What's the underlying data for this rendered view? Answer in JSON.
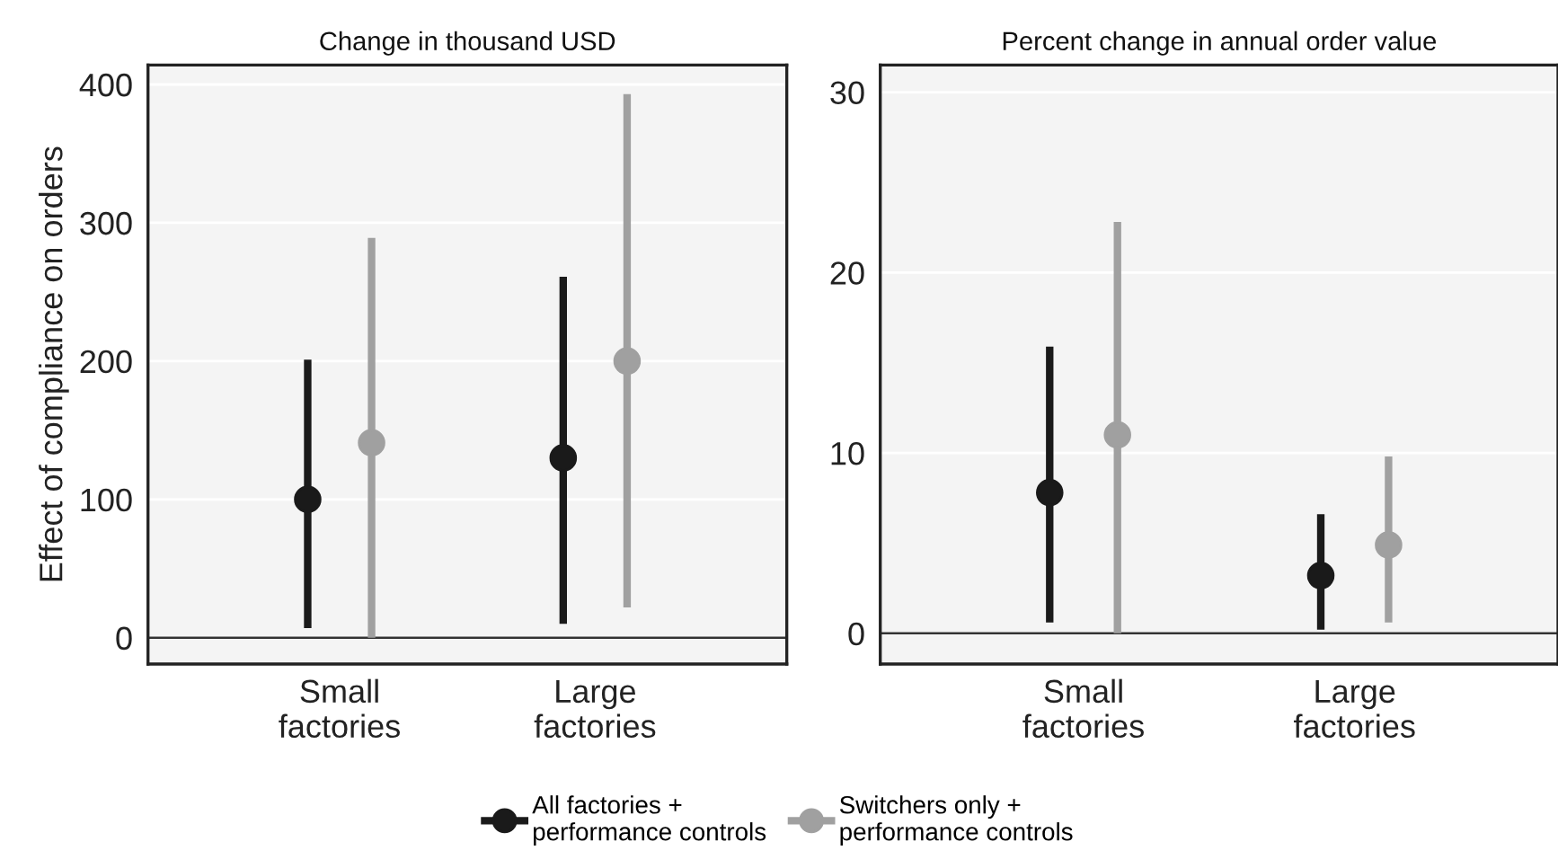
{
  "chart_data": [
    {
      "type": "scatter",
      "title": "Change in thousand USD",
      "ylabel": "Effect of compliance on orders",
      "categories": [
        "Small\nfactories",
        "Large\nfactories"
      ],
      "series": [
        {
          "name": "All factories +\nperformance controls",
          "color": "#1a1a1a",
          "values": [
            100,
            130
          ],
          "errors": [
            [
              7,
              201
            ],
            [
              10,
              261
            ]
          ]
        },
        {
          "name": "Switchers only +\nperformance controls",
          "color": "#a0a0a0",
          "values": [
            141,
            200
          ],
          "errors": [
            [
              0,
              289
            ],
            [
              22,
              393
            ]
          ]
        }
      ],
      "ylim": [
        -19,
        414
      ],
      "yticks": [
        0,
        100,
        200,
        300,
        400
      ],
      "grid": "y",
      "marker": "circle",
      "legend": "bottom",
      "ref_lines": [
        {
          "axis": "y",
          "value": 0,
          "color": "#333333"
        }
      ]
    },
    {
      "type": "scatter",
      "title": "Percent change in annual order value",
      "categories": [
        "Small\nfactories",
        "Large\nfactories"
      ],
      "series": [
        {
          "color": "#1a1a1a",
          "values": [
            7.8,
            3.2
          ],
          "errors": [
            [
              0.6,
              15.9
            ],
            [
              0.2,
              6.6
            ]
          ]
        },
        {
          "color": "#a0a0a0",
          "values": [
            11,
            4.9
          ],
          "errors": [
            [
              0,
              22.8
            ],
            [
              0.6,
              9.8
            ]
          ]
        }
      ],
      "ylim": [
        -1.7,
        31.5
      ],
      "yticks": [
        0,
        10,
        20,
        30
      ],
      "grid": "y",
      "marker": "circle",
      "legend": "bottom",
      "ref_lines": [
        {
          "axis": "y",
          "value": 0,
          "color": "#333333"
        }
      ]
    }
  ]
}
